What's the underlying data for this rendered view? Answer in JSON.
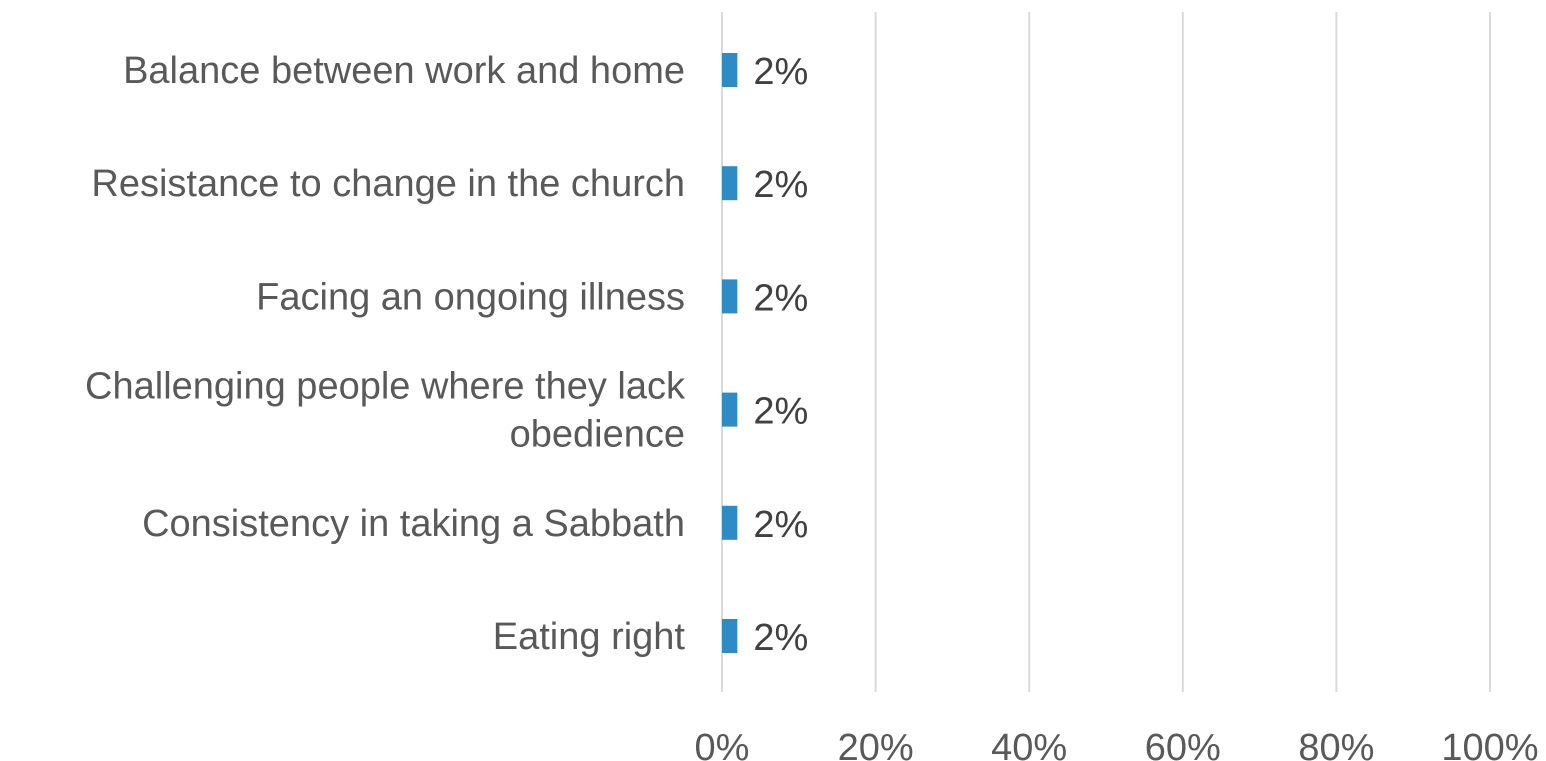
{
  "chart_data": {
    "type": "bar",
    "orientation": "horizontal",
    "categories": [
      "Balance between work and home",
      "Resistance to change in the church",
      "Facing an ongoing illness",
      "Challenging people where they lack obedience",
      "Consistency in taking a Sabbath",
      "Eating right"
    ],
    "category_lines": [
      [
        "Balance between work and home"
      ],
      [
        "Resistance to change in the church"
      ],
      [
        "Facing an ongoing illness"
      ],
      [
        "Challenging people where they lack",
        "obedience"
      ],
      [
        "Consistency in taking a Sabbath"
      ],
      [
        "Eating right"
      ]
    ],
    "values": [
      2,
      2,
      2,
      2,
      2,
      2
    ],
    "data_labels": [
      "2%",
      "2%",
      "2%",
      "2%",
      "2%",
      "2%"
    ],
    "xlim": [
      0,
      100
    ],
    "x_ticks": [
      0,
      20,
      40,
      60,
      80,
      100
    ],
    "x_tick_labels": [
      "0%",
      "20%",
      "40%",
      "60%",
      "80%",
      "100%"
    ],
    "title": "",
    "xlabel": "",
    "ylabel": "",
    "grid": "vertical",
    "legend": "none",
    "colors": {
      "bar": "#2E8BC6",
      "grid": "#D9D9D9",
      "text": "#595959",
      "data_label": "#404040"
    }
  }
}
